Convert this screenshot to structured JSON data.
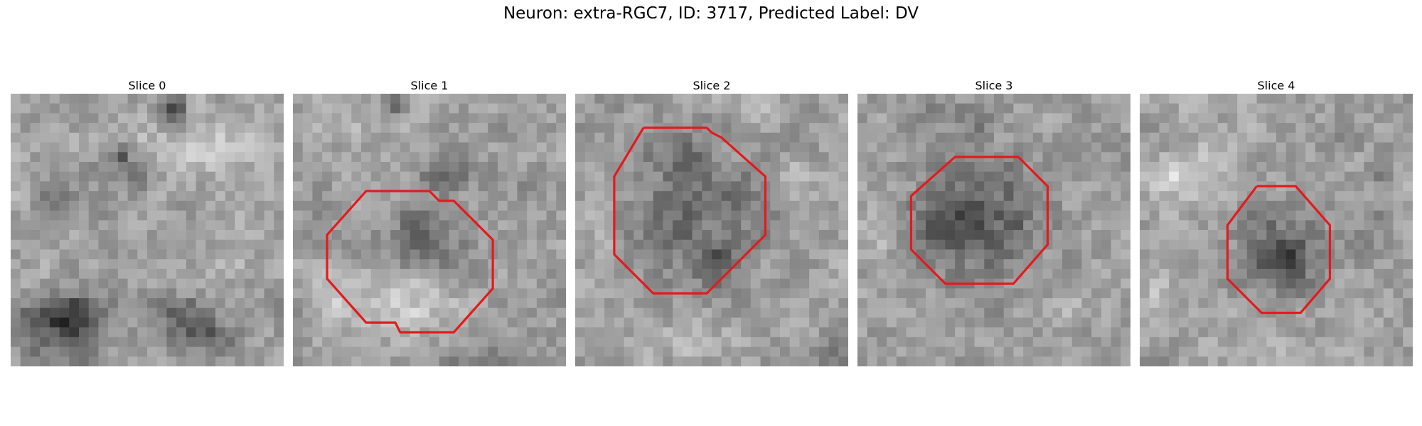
{
  "figure": {
    "title": "Neuron: extra-RGC7, ID: 3717, Predicted Label: DV"
  },
  "colors": {
    "contour": "#e41a1c"
  },
  "panels": [
    {
      "title": "Slice 0",
      "contour": [],
      "blobs": [
        [
          4.0,
          24.0,
          6,
          3.5,
          -65
        ],
        [
          6.5,
          22.5,
          3,
          2,
          -60
        ],
        [
          17.0,
          23.0,
          4,
          2.5,
          -55
        ],
        [
          20.0,
          25.0,
          3,
          2,
          -50
        ],
        [
          16.5,
          1.5,
          1.6,
          1.4,
          -70
        ],
        [
          11.5,
          6.0,
          1.2,
          1.2,
          -70
        ],
        [
          9.0,
          7.5,
          2,
          1.2,
          -30
        ],
        [
          13.5,
          8.0,
          2,
          1.6,
          -30
        ],
        [
          4.5,
          10.0,
          2.5,
          2,
          -25
        ],
        [
          18.0,
          6.0,
          4,
          3,
          30
        ],
        [
          22.5,
          5.5,
          3,
          2.5,
          30
        ],
        [
          12.0,
          4.0,
          4,
          2.5,
          20
        ],
        [
          6.0,
          6.0,
          2.5,
          2,
          20
        ],
        [
          23.0,
          16.5,
          2,
          1.5,
          25
        ],
        [
          19.0,
          17.0,
          3,
          2,
          15
        ],
        [
          24.0,
          11.0,
          2.5,
          3,
          15
        ],
        [
          14.0,
          15.0,
          4,
          3,
          -10
        ],
        [
          3.0,
          19.0,
          2.5,
          2,
          10
        ]
      ]
    },
    {
      "title": "Slice 1",
      "contour": [
        [
          9,
          10
        ],
        [
          14,
          10
        ],
        [
          15,
          11
        ],
        [
          16.5,
          11
        ],
        [
          20.5,
          15
        ],
        [
          20.5,
          20
        ],
        [
          16.5,
          24.5
        ],
        [
          11,
          24.5
        ],
        [
          10.5,
          23.5
        ],
        [
          7.5,
          23.5
        ],
        [
          3.5,
          19
        ],
        [
          3.5,
          14.5
        ],
        [
          7.5,
          10
        ],
        [
          9,
          10
        ]
      ],
      "blobs": [
        [
          13.5,
          15.5,
          4.5,
          4,
          -60
        ],
        [
          15.5,
          8.0,
          3,
          2,
          -50
        ],
        [
          10.5,
          1.0,
          1.5,
          1.5,
          -70
        ],
        [
          12.0,
          21.0,
          7,
          3.5,
          40
        ],
        [
          4.5,
          21.0,
          3,
          3,
          25
        ],
        [
          6.0,
          3.0,
          4,
          2,
          25
        ],
        [
          21.0,
          1.0,
          4,
          1.5,
          20
        ],
        [
          22.0,
          9.0,
          3,
          2.5,
          -20
        ],
        [
          17.0,
          27.0,
          5,
          1.5,
          -30
        ],
        [
          22.5,
          23.0,
          2.5,
          2,
          -25
        ],
        [
          2.0,
          12.0,
          2,
          3,
          -10
        ]
      ]
    },
    {
      "title": "Slice 2",
      "contour": [
        [
          7,
          3.5
        ],
        [
          13.5,
          3.5
        ],
        [
          14,
          4
        ],
        [
          15,
          4.5
        ],
        [
          19.5,
          8.5
        ],
        [
          19.5,
          14.5
        ],
        [
          13.5,
          20.5
        ],
        [
          8,
          20.5
        ],
        [
          4,
          16.5
        ],
        [
          4,
          8.5
        ],
        [
          7,
          3.5
        ]
      ],
      "blobs": [
        [
          12.0,
          12.0,
          7,
          7,
          -60
        ],
        [
          15.5,
          17.5,
          2.5,
          2.5,
          -40
        ],
        [
          10.0,
          5.0,
          3,
          2,
          -35
        ],
        [
          23.0,
          10.0,
          2,
          4,
          20
        ],
        [
          2.0,
          13.0,
          2,
          4,
          15
        ],
        [
          12.0,
          25.0,
          6,
          2,
          25
        ],
        [
          20.0,
          2.0,
          3,
          1.5,
          20
        ],
        [
          26.0,
          27.0,
          2,
          1.5,
          -30
        ],
        [
          3.0,
          1.0,
          3,
          1.5,
          -15
        ]
      ]
    },
    {
      "title": "Slice 3",
      "contour": [
        [
          10.5,
          6.5
        ],
        [
          16.5,
          6.5
        ],
        [
          19.5,
          9.5
        ],
        [
          19.5,
          15.5
        ],
        [
          16,
          19.5
        ],
        [
          9,
          19.5
        ],
        [
          5.5,
          16
        ],
        [
          5.5,
          10.5
        ],
        [
          10,
          6.5
        ],
        [
          10.5,
          6.5
        ]
      ],
      "blobs": [
        [
          12.5,
          13.0,
          7,
          6.5,
          -62
        ],
        [
          8.5,
          13.5,
          3,
          3,
          -40
        ],
        [
          12.0,
          3.0,
          3,
          2,
          -25
        ],
        [
          8.0,
          2.0,
          2.5,
          1.5,
          -25
        ],
        [
          2.0,
          15.0,
          3,
          4,
          15
        ],
        [
          21.5,
          22.0,
          3,
          2,
          15
        ],
        [
          12.0,
          25.0,
          4,
          2,
          10
        ],
        [
          23.0,
          5.0,
          2,
          2,
          10
        ]
      ]
    },
    {
      "title": "Slice 4",
      "contour": [
        [
          12,
          9.5
        ],
        [
          16,
          9.5
        ],
        [
          19.5,
          13.5
        ],
        [
          19.5,
          19
        ],
        [
          16.5,
          22.5
        ],
        [
          12.5,
          22.5
        ],
        [
          9,
          19
        ],
        [
          9,
          13.5
        ],
        [
          12,
          9.5
        ]
      ],
      "blobs": [
        [
          14.5,
          16.0,
          4.5,
          4.5,
          -62
        ],
        [
          15.0,
          17.5,
          2,
          2,
          -40
        ],
        [
          4.0,
          9.0,
          4,
          3,
          40
        ],
        [
          8.0,
          6.0,
          3,
          2,
          25
        ],
        [
          2.0,
          20.0,
          2.5,
          2.5,
          25
        ],
        [
          20.0,
          4.0,
          4,
          2,
          -15
        ],
        [
          25.0,
          8.0,
          1.5,
          2,
          -25
        ],
        [
          24.0,
          14.0,
          2.5,
          3,
          -20
        ],
        [
          12.0,
          26.0,
          4,
          2,
          20
        ],
        [
          8.0,
          1.0,
          3,
          1,
          20
        ]
      ]
    }
  ]
}
